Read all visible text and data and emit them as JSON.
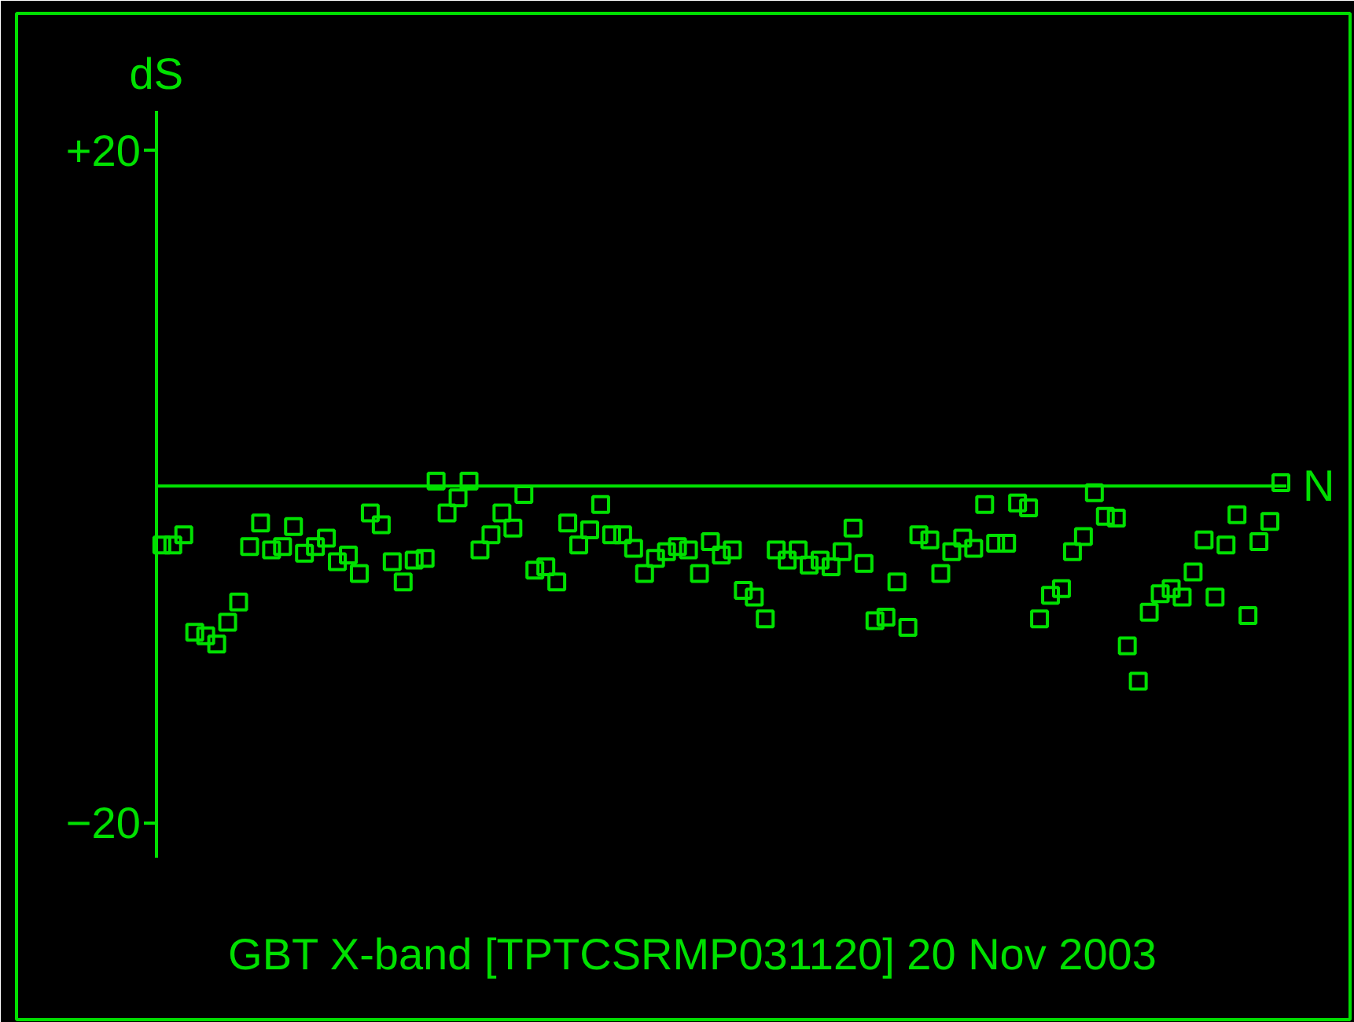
{
  "chart_data": {
    "type": "scatter",
    "title": "GBT X-band [TPTCSRMP031120] 20 Nov 2003",
    "xlabel": "N",
    "ylabel": "dS",
    "categories": [
      null,
      null,
      null,
      null,
      null,
      null,
      null,
      null,
      null,
      null,
      null,
      null,
      null,
      null,
      null,
      null,
      null,
      null,
      null,
      null,
      null,
      null,
      null,
      null,
      null,
      null,
      null,
      null,
      null,
      null,
      null,
      null,
      null,
      null,
      null,
      null,
      null,
      null,
      null,
      null,
      null,
      null,
      null,
      null,
      null,
      null,
      null,
      null,
      null,
      null,
      null,
      null,
      null,
      null,
      null,
      null,
      null,
      null,
      null,
      null,
      null,
      null,
      null,
      null,
      null,
      null,
      null,
      null,
      null,
      null,
      null,
      null,
      null,
      null,
      null,
      null,
      null,
      null,
      null,
      null,
      null,
      null,
      null,
      null,
      null,
      null,
      null,
      null,
      null,
      null,
      null,
      null,
      null,
      null,
      null,
      null,
      null,
      null,
      null,
      null,
      null,
      null,
      null
    ],
    "values": [
      -3.5,
      -3.5,
      -2.9,
      -8.7,
      -8.9,
      -9.4,
      -8.1,
      -6.9,
      -3.6,
      -2.2,
      -3.8,
      -3.6,
      -2.4,
      -4.0,
      -3.6,
      -3.1,
      -4.5,
      -4.1,
      -5.2,
      -1.6,
      -2.3,
      -4.5,
      -5.7,
      -4.4,
      -4.3,
      0.3,
      -1.6,
      -0.7,
      0.3,
      -3.8,
      -2.9,
      -1.6,
      -2.5,
      -0.5,
      -5.0,
      -4.8,
      -5.7,
      -2.2,
      -3.5,
      -2.6,
      -1.1,
      -2.9,
      -2.9,
      -3.7,
      -5.2,
      -4.3,
      -3.9,
      -3.6,
      -3.8,
      -5.2,
      -3.3,
      -4.1,
      -3.8,
      -6.2,
      -6.6,
      -7.9,
      -3.8,
      -4.4,
      -3.8,
      -4.7,
      -4.4,
      -4.8,
      -3.9,
      -2.5,
      -4.6,
      -8.0,
      -7.8,
      -5.7,
      -8.4,
      -2.9,
      -3.2,
      -5.2,
      -3.9,
      -3.1,
      -3.7,
      -1.1,
      -3.4,
      -3.4,
      -1.0,
      -1.3,
      -7.9,
      -6.5,
      -6.1,
      -3.9,
      -3.0,
      -0.4,
      -1.8,
      -1.9,
      -9.5,
      -11.6,
      -7.5,
      -6.4,
      -6.1,
      -6.6,
      -5.1,
      -3.2,
      -6.6,
      -3.5,
      -1.7,
      -7.7,
      -3.3,
      -2.1,
      0.2
    ],
    "color": "#00e000",
    "marker": "square",
    "ylim": [
      -22.1,
      22.3
    ],
    "yticks": [
      {
        "value": 20,
        "label": "+20"
      },
      {
        "value": -20,
        "label": "−20"
      }
    ],
    "tick_labels": "y",
    "grid": false,
    "ref_lines": [
      {
        "axis": "y",
        "value": 0
      }
    ]
  }
}
